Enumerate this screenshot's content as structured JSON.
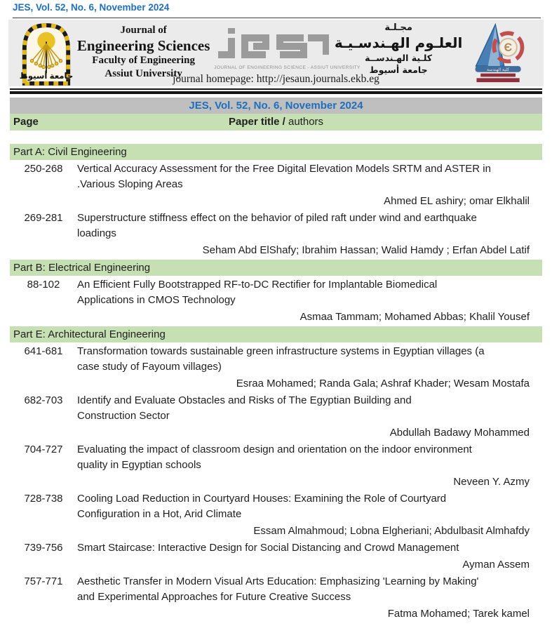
{
  "page": {
    "issue_line": "JES, Vol. 52, No. 6, November 2024",
    "accent_blue": "#1f6fbf",
    "banner_gray": "#bfbfbf",
    "banner_green": "#c6e0b4",
    "masthead_gray": "#ebebeb"
  },
  "masthead": {
    "university_logo_icon": "assiut-university-emblem",
    "university_logo_text": "جامعة أسيوط",
    "title_lines": [
      "Journal of",
      "Engineering Sciences",
      "Faculty of Engineering",
      "Assiut University"
    ],
    "jes_logo_icon": "jes-logo",
    "jes_logo_caption": "JOURNAL OF ENGINEERING SCIENCE - ASSIUT UNIVERSITY",
    "arabic_lines": [
      "مجـلـة",
      "العلـوم الهـندسـيـة",
      "كلـية الهـندســة",
      "جامعة أسيوط"
    ],
    "faculty_logo_icon": "faculty-of-engineering-emblem",
    "faculty_logo_text": "كلية الهندسة",
    "homepage_line": "journal homepage: http://jesaun.journals.ekb.eg",
    "sun_yellow": "#e8c227",
    "logo_blue": "#4a7fb5",
    "logo_red": "#8e2f39"
  },
  "issue_banner": {
    "text": "JES, Vol. 52, No. 6, November 2024"
  },
  "columns_header": {
    "page_label": "Page",
    "title_label_bold": "Paper title /",
    "title_label_regular": " authors"
  },
  "sections": [
    {
      "heading": "Part A: Civil Engineering",
      "entries": [
        {
          "pages": "250-268",
          "title": "Vertical Accuracy Assessment for the Free Digital Elevation Models SRTM and ASTER in\n.Various Sloping Areas",
          "authors": "Ahmed EL ashiry; omar Elkhalil"
        },
        {
          "pages": "269-281",
          "title": "Superstructure stiffness effect on the behavior of piled raft under wind and earthquake\nloadings",
          "authors": "Seham Abd ElShafy; Ibrahim Hassan; Walid Hamdy ; Erfan Abdel Latif"
        }
      ]
    },
    {
      "heading": "Part B: Electrical Engineering",
      "entries": [
        {
          "pages": "88-102",
          "title": "An Efficient Fully Bootstrapped RF-to-DC Rectifier for Implantable Biomedical\nApplications in CMOS Technology",
          "authors": "Asmaa Tammam; Mohamed Abbas; Khalil Yousef"
        }
      ]
    },
    {
      "heading": "Part E: Architectural Engineering",
      "entries": [
        {
          "pages": "641-681",
          "title": "Transformation towards sustainable green infrastructure systems in Egyptian villages (a\ncase study of Fayoum villages)",
          "authors": "Esraa Mohamed; Randa Gala; Ashraf Khader; Wesam Mostafa"
        },
        {
          "pages": "682-703",
          "title": "Identify and Evaluate Obstacles and Risks of The Egyptian Building and\nConstruction Sector",
          "authors": "Abdullah Badawy Mohammed"
        },
        {
          "pages": "704-727",
          "title": "Evaluating the impact of classroom design and orientation on the indoor environment\nquality in Egyptian schools",
          "authors": "Neveen Y. Azmy"
        },
        {
          "pages": "728-738",
          "title": "Cooling Load Reduction in Courtyard Houses: Examining the Role of Courtyard\nConfiguration in a Hot, Arid Climate",
          "authors": "Essam Almahmoud; Lobna Elgheriani; Abdulbasit Almhafdy"
        },
        {
          "pages": "739-756",
          "title": "Smart Staircase: Interactive Design for Social Distancing and Crowd Management",
          "authors": "Ayman Assem"
        },
        {
          "pages": "757-771",
          "title": "Aesthetic Transfer in Modern Visual Arts Education: Emphasizing 'Learning by Making'\nand Experimental Approaches for Future Creative Success",
          "authors": "Fatma Mohamed; Tarek kamel"
        }
      ]
    }
  ]
}
